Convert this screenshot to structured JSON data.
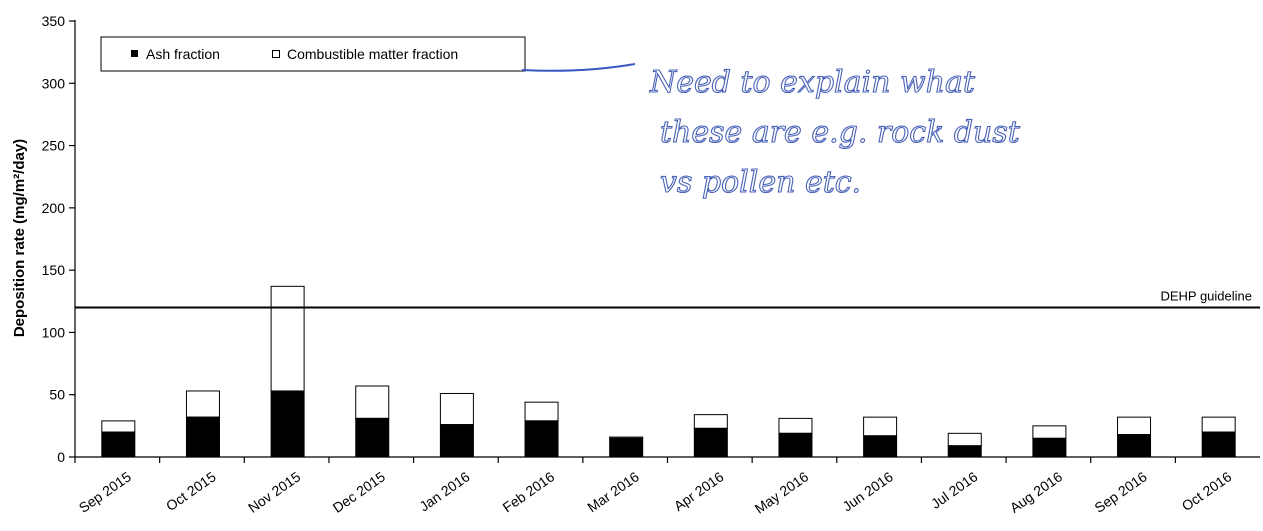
{
  "chart_data": {
    "type": "bar",
    "stacked": true,
    "ylabel": "Deposition rate (mg/m²/day)",
    "ylim": [
      0,
      350
    ],
    "yticks": [
      0,
      50,
      100,
      150,
      200,
      250,
      300,
      350
    ],
    "grid": false,
    "legend_placement": "top-left",
    "categories": [
      "Sep 2015",
      "Oct 2015",
      "Nov 2015",
      "Dec 2015",
      "Jan 2016",
      "Feb 2016",
      "Mar 2016",
      "Apr 2016",
      "May 2016",
      "Jun 2016",
      "Jul 2016",
      "Aug 2016",
      "Sep 2016",
      "Oct 2016"
    ],
    "series": [
      {
        "name": "Ash fraction",
        "color": "#000000",
        "values": [
          20,
          32,
          53,
          31,
          26,
          29,
          15,
          23,
          19,
          17,
          9,
          15,
          18,
          20
        ]
      },
      {
        "name": "Combustible matter fraction",
        "color": "#ffffff",
        "values": [
          9,
          21,
          84,
          26,
          25,
          15,
          1,
          11,
          12,
          15,
          10,
          10,
          14,
          12
        ]
      }
    ],
    "reference_line": {
      "label": "DEHP guideline",
      "value": 120
    }
  },
  "annotation": {
    "lines": [
      "Need to explain what",
      "these are e.g. rock dust",
      "vs pollen etc."
    ]
  }
}
